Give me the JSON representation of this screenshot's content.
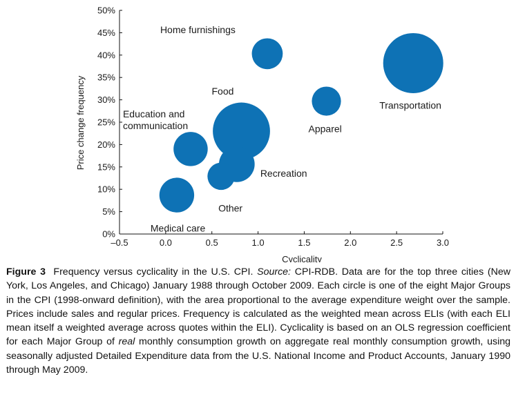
{
  "chart_data": {
    "type": "scatter",
    "title": "",
    "xlabel": "Cyclicality",
    "ylabel": "Price change frequency",
    "xlim": [
      -0.5,
      3.0
    ],
    "ylim": [
      0,
      50
    ],
    "x_ticks": [
      -0.5,
      0.0,
      0.5,
      1.0,
      1.5,
      2.0,
      2.5,
      3.0
    ],
    "x_tick_labels": [
      "–0.5",
      "0.0",
      "0.5",
      "1.0",
      "1.5",
      "2.0",
      "2.5",
      "3.0"
    ],
    "y_ticks": [
      0,
      5,
      10,
      15,
      20,
      25,
      30,
      35,
      40,
      45,
      50
    ],
    "y_tick_labels": [
      "0%",
      "5%",
      "10%",
      "15%",
      "20%",
      "25%",
      "30%",
      "35%",
      "40%",
      "45%",
      "50%"
    ],
    "grid": false,
    "bubble_color": "#0e72b5",
    "points": [
      {
        "label": "Home furnishings",
        "x": 1.1,
        "y": 40.3,
        "weight": 4.5
      },
      {
        "label": "Transportation",
        "x": 2.68,
        "y": 38.2,
        "weight": 17.0
      },
      {
        "label": "Apparel",
        "x": 1.74,
        "y": 29.7,
        "weight": 4.0
      },
      {
        "label": "Food",
        "x": 0.82,
        "y": 23.0,
        "weight": 15.4
      },
      {
        "label": "Education and communication",
        "x": 0.27,
        "y": 19.0,
        "weight": 5.5
      },
      {
        "label": "Recreation",
        "x": 0.77,
        "y": 15.6,
        "weight": 6.0
      },
      {
        "label": "Other",
        "x": 0.6,
        "y": 12.9,
        "weight": 3.5
      },
      {
        "label": "Medical care",
        "x": 0.12,
        "y": 8.7,
        "weight": 5.7
      }
    ]
  },
  "caption": {
    "figure_label": "Figure 3",
    "intro": "Frequency versus cyclicality in the U.S. CPI.",
    "source_label": "Source:",
    "part2": "CPI-RDB. Data are for the top three cities (New York, Los Angeles, and Chicago) January 1988 through October 2009. Each circle is one of the eight Major Groups in the CPI (1998-onward definition), with the area proportional to the average expenditure weight over the sample. Prices include sales and regular prices. Frequency is calculated as the weighted mean across ELIs (with each ELI mean itself a weighted average across quotes within the ELI). Cyclicality is based on an OLS regression coefficient for each Major Group of",
    "emph": "real",
    "part3": "monthly consumption growth on aggregate real monthly consumption growth, using seasonally adjusted Detailed Expenditure data from the U.S. National Income and Product Accounts, January 1990 through May 2009."
  }
}
